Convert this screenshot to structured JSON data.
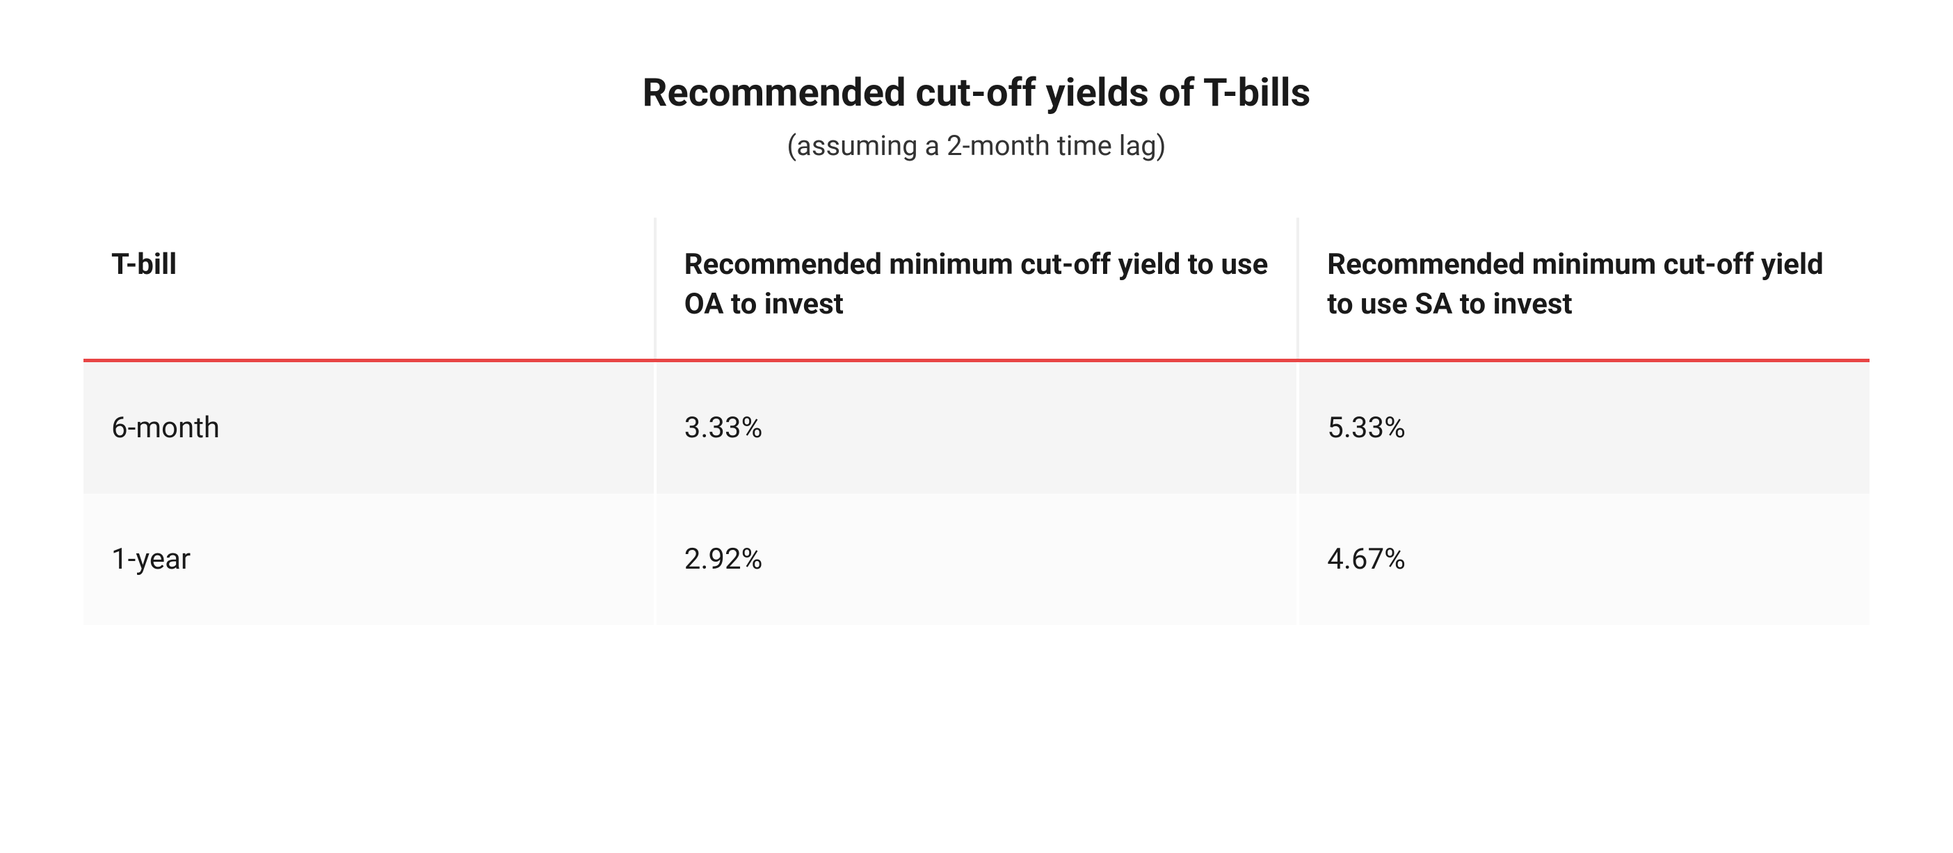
{
  "title": "Recommended cut-off yields of T-bills",
  "subtitle": "(assuming a 2-month time lag)",
  "table": {
    "columns": [
      "T-bill",
      "Recommended minimum cut-off yield to use OA to invest",
      "Recommended minimum cut-off yield to use SA to invest"
    ],
    "rows": [
      [
        "6-month",
        "3.33%",
        "5.33%"
      ],
      [
        "1-year",
        "2.92%",
        "4.67%"
      ]
    ],
    "header_border_color": "#e84545",
    "row_odd_bg": "#f5f5f5",
    "row_even_bg": "#fbfbfb",
    "column_divider_color": "#f0f0f0",
    "title_fontsize": 56,
    "subtitle_fontsize": 40,
    "header_fontsize": 42,
    "cell_fontsize": 42,
    "text_color": "#1a1a1a"
  }
}
